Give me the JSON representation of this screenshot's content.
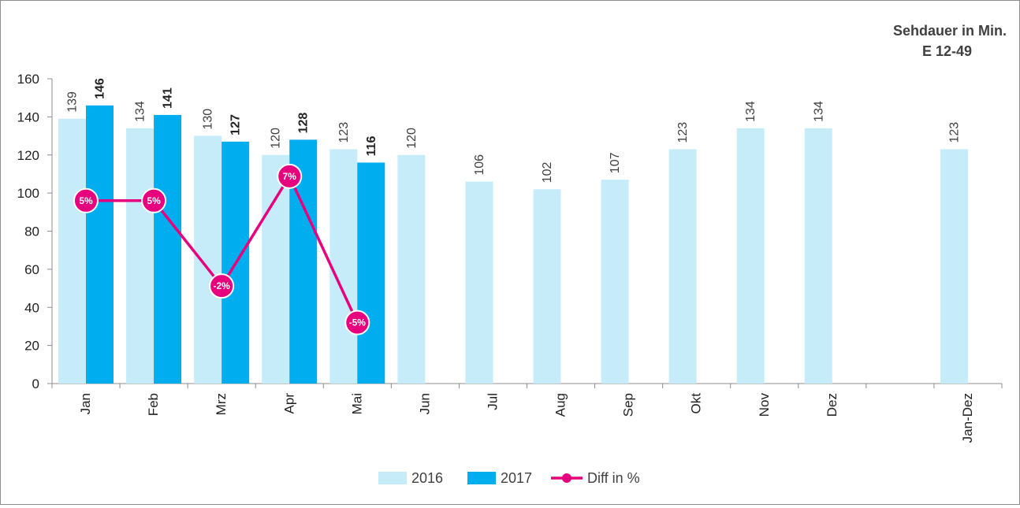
{
  "chart_data": {
    "type": "bar",
    "title_lines": [
      "Sehdauer in Min.",
      "E 12-49"
    ],
    "categories": [
      "Jan",
      "Feb",
      "Mrz",
      "Apr",
      "Mai",
      "Jun",
      "Jul",
      "Aug",
      "Sep",
      "Okt",
      "Nov",
      "Dez",
      "",
      "Jan-Dez"
    ],
    "series": [
      {
        "name": "2016",
        "kind": "bar",
        "color": "#c6ecfa",
        "values": [
          139,
          134,
          130,
          120,
          123,
          120,
          106,
          102,
          107,
          123,
          134,
          134,
          null,
          123
        ],
        "labels": [
          "139",
          "134",
          "130",
          "120",
          "123",
          "120",
          "106",
          "102",
          "107",
          "123",
          "134",
          "134",
          "",
          "123"
        ]
      },
      {
        "name": "2017",
        "kind": "bar",
        "color": "#00aeef",
        "values": [
          146,
          141,
          127,
          128,
          116,
          null,
          null,
          null,
          null,
          null,
          null,
          null,
          null,
          null
        ],
        "labels": [
          "146",
          "141",
          "127",
          "128",
          "116",
          "",
          "",
          "",
          "",
          "",
          "",
          "",
          "",
          ""
        ]
      },
      {
        "name": "Diff in %",
        "kind": "line",
        "color": "#e6007e",
        "values": [
          5,
          5,
          -2,
          7,
          -5,
          null,
          null,
          null,
          null,
          null,
          null,
          null,
          null,
          null
        ],
        "labels": [
          "5%",
          "5%",
          "-2%",
          "7%",
          "-5%",
          "",
          "",
          "",
          "",
          "",
          "",
          "",
          "",
          ""
        ]
      }
    ],
    "y_ticks": [
      "0",
      "20",
      "40",
      "60",
      "80",
      "100",
      "120",
      "140",
      "160"
    ],
    "ylim": [
      0,
      160
    ],
    "grid": false,
    "legend_position": "bottom"
  }
}
